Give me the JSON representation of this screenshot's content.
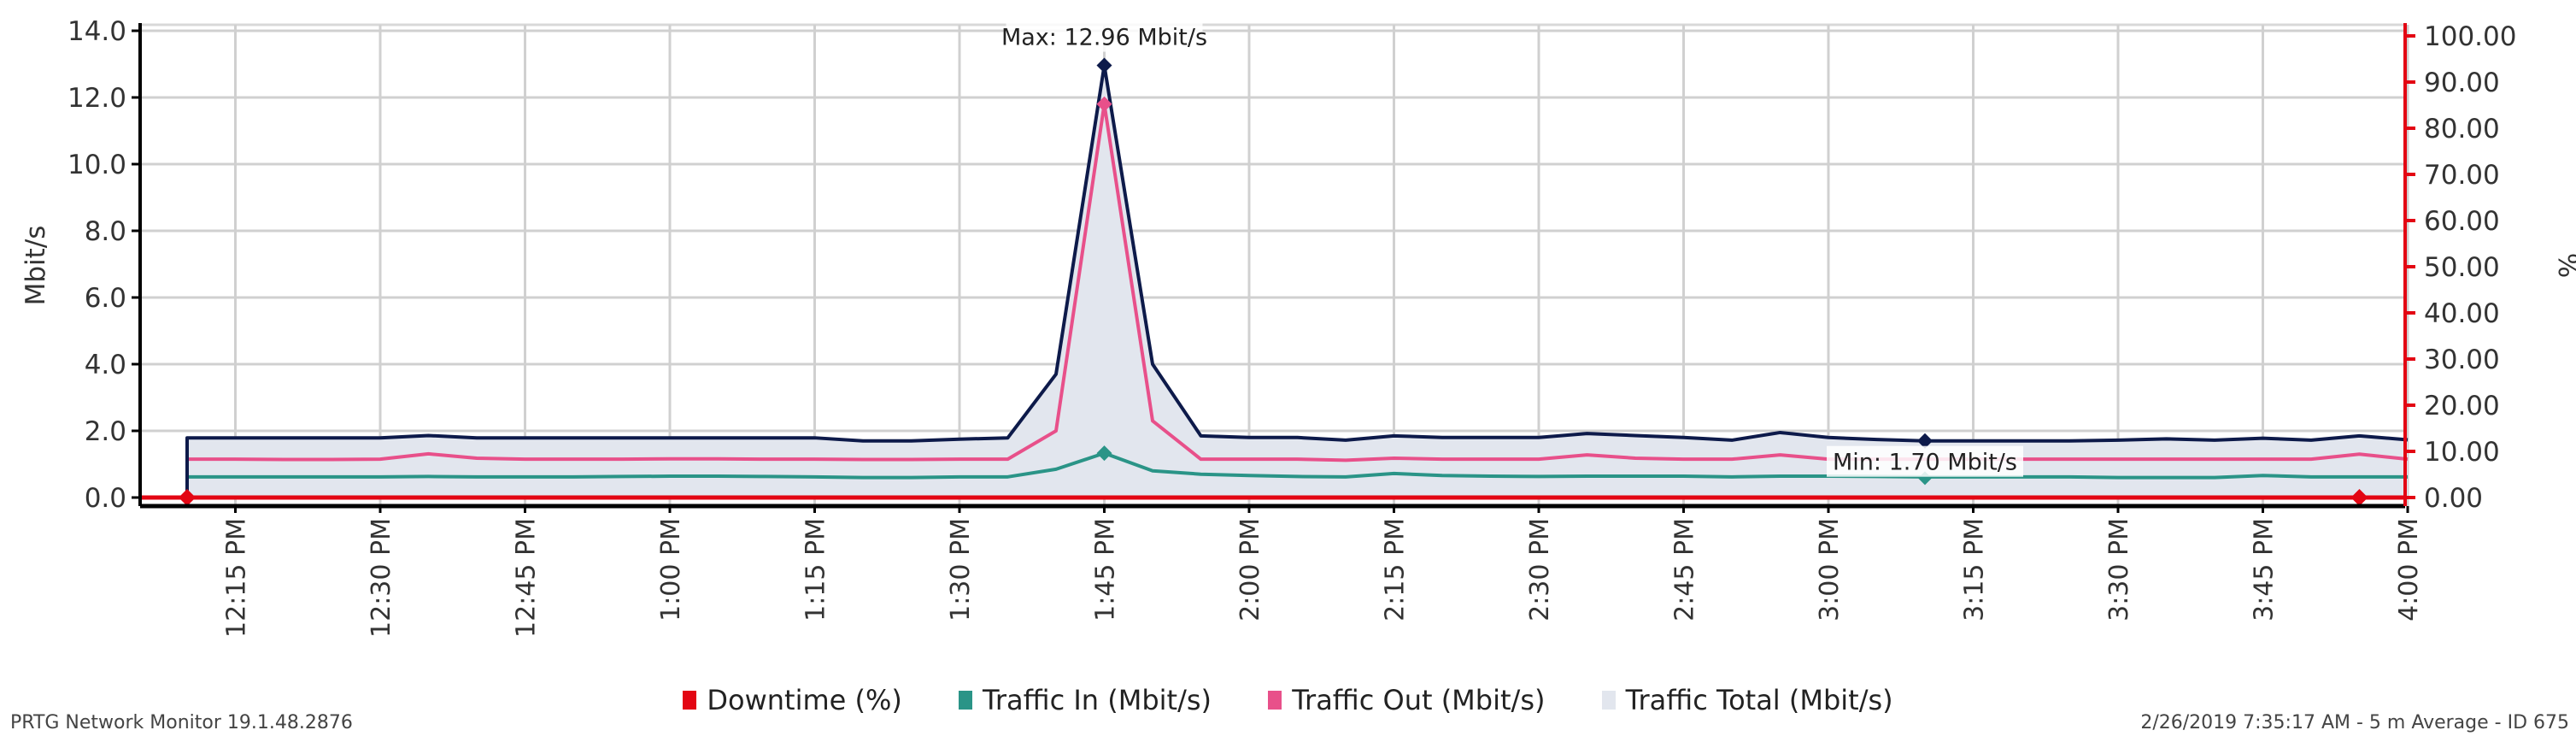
{
  "chart_data": {
    "type": "line",
    "title": "",
    "x": [
      "12:10 PM",
      "12:15 PM",
      "12:20 PM",
      "12:25 PM",
      "12:30 PM",
      "12:35 PM",
      "12:40 PM",
      "12:45 PM",
      "12:50 PM",
      "12:55 PM",
      "1:00 PM",
      "1:05 PM",
      "1:10 PM",
      "1:15 PM",
      "1:20 PM",
      "1:25 PM",
      "1:30 PM",
      "1:35 PM",
      "1:40 PM",
      "1:45 PM",
      "1:50 PM",
      "1:55 PM",
      "2:00 PM",
      "2:05 PM",
      "2:10 PM",
      "2:15 PM",
      "2:20 PM",
      "2:25 PM",
      "2:30 PM",
      "2:35 PM",
      "2:40 PM",
      "2:45 PM",
      "2:50 PM",
      "2:55 PM",
      "3:00 PM",
      "3:05 PM",
      "3:10 PM",
      "3:15 PM",
      "3:20 PM",
      "3:25 PM",
      "3:30 PM",
      "3:35 PM",
      "3:40 PM",
      "3:45 PM",
      "3:50 PM",
      "3:55 PM",
      "4:00 PM"
    ],
    "x_tick_labels": [
      "12:15 PM",
      "12:30 PM",
      "12:45 PM",
      "1:00 PM",
      "1:15 PM",
      "1:30 PM",
      "1:45 PM",
      "2:00 PM",
      "2:15 PM",
      "2:30 PM",
      "2:45 PM",
      "3:00 PM",
      "3:15 PM",
      "3:30 PM",
      "3:45 PM",
      "4:00 PM"
    ],
    "series": [
      {
        "name": "Downtime (%)",
        "axis": "right",
        "color": "#e30613",
        "values": [
          0,
          0,
          0,
          0,
          0,
          0,
          0,
          0,
          0,
          0,
          0,
          0,
          0,
          0,
          0,
          0,
          0,
          0,
          0,
          0,
          0,
          0,
          0,
          0,
          0,
          0,
          0,
          0,
          0,
          0,
          0,
          0,
          0,
          0,
          0,
          0,
          0,
          0,
          0,
          0,
          0,
          0,
          0,
          0,
          0,
          0,
          0
        ]
      },
      {
        "name": "Traffic In (Mbit/s)",
        "axis": "left",
        "color": "#2a9487",
        "values": [
          0.62,
          0.62,
          0.62,
          0.62,
          0.62,
          0.63,
          0.62,
          0.62,
          0.62,
          0.63,
          0.64,
          0.64,
          0.63,
          0.62,
          0.6,
          0.6,
          0.62,
          0.62,
          0.85,
          1.33,
          0.8,
          0.7,
          0.66,
          0.63,
          0.62,
          0.72,
          0.66,
          0.64,
          0.63,
          0.64,
          0.64,
          0.64,
          0.62,
          0.64,
          0.64,
          0.63,
          0.62,
          0.62,
          0.62,
          0.62,
          0.6,
          0.6,
          0.6,
          0.66,
          0.62,
          0.62,
          0.62
        ]
      },
      {
        "name": "Traffic Out (Mbit/s)",
        "axis": "left",
        "color": "#e8508a",
        "values": [
          1.15,
          1.15,
          1.14,
          1.14,
          1.15,
          1.31,
          1.18,
          1.15,
          1.15,
          1.15,
          1.16,
          1.16,
          1.15,
          1.15,
          1.14,
          1.14,
          1.15,
          1.15,
          2.0,
          11.8,
          2.3,
          1.15,
          1.15,
          1.15,
          1.12,
          1.18,
          1.15,
          1.15,
          1.15,
          1.28,
          1.18,
          1.15,
          1.15,
          1.28,
          1.15,
          1.15,
          1.15,
          1.15,
          1.15,
          1.15,
          1.15,
          1.15,
          1.15,
          1.15,
          1.15,
          1.3,
          1.15
        ]
      },
      {
        "name": "Traffic Total (Mbit/s)",
        "axis": "left",
        "color": "#0d1a4a",
        "fill": "#e2e6ee",
        "values": [
          1.79,
          1.79,
          1.79,
          1.79,
          1.79,
          1.86,
          1.79,
          1.79,
          1.79,
          1.79,
          1.79,
          1.79,
          1.79,
          1.79,
          1.7,
          1.7,
          1.75,
          1.79,
          3.7,
          12.96,
          4.0,
          1.85,
          1.8,
          1.8,
          1.72,
          1.85,
          1.8,
          1.8,
          1.8,
          1.92,
          1.86,
          1.8,
          1.72,
          1.95,
          1.8,
          1.74,
          1.7,
          1.7,
          1.7,
          1.7,
          1.72,
          1.76,
          1.72,
          1.78,
          1.72,
          1.85,
          1.73
        ]
      }
    ],
    "annotations": [
      {
        "text": "Max: 12.96 Mbit/s",
        "x": "1:45 PM",
        "y": 12.96,
        "series": "Traffic Total (Mbit/s)"
      },
      {
        "text": "Min: 1.70 Mbit/s",
        "x": "3:10 PM",
        "y": 1.7,
        "series": "Traffic Total (Mbit/s)"
      }
    ],
    "ylabel": "Mbit/s",
    "ylim": [
      0,
      14
    ],
    "yticks": [
      "0.0",
      "2.0",
      "4.0",
      "6.0",
      "8.0",
      "10.0",
      "12.0",
      "14.0"
    ],
    "y2label": "%",
    "y2lim": [
      0,
      100
    ],
    "y2ticks": [
      "0.00",
      "10.00",
      "20.00",
      "30.00",
      "40.00",
      "50.00",
      "60.00",
      "70.00",
      "80.00",
      "90.00",
      "100.00"
    ],
    "grid": true,
    "legend_position": "bottom"
  },
  "legend": [
    {
      "label": "Downtime (%)",
      "color": "#e30613"
    },
    {
      "label": "Traffic In (Mbit/s)",
      "color": "#2a9487"
    },
    {
      "label": "Traffic Out (Mbit/s)",
      "color": "#e8508a"
    },
    {
      "label": "Traffic Total (Mbit/s)",
      "color": "#e2e6ee"
    }
  ],
  "footer": {
    "left": "PRTG Network Monitor 19.1.48.2876",
    "right": "2/26/2019 7:35:17 AM - 5 m Average - ID 675"
  },
  "colors": {
    "grid": "#d0d0d0",
    "axis_left": "#000000",
    "axis_right": "#e30613"
  }
}
